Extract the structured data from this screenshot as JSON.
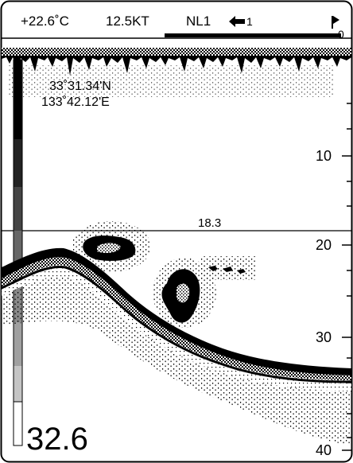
{
  "status_bar": {
    "water_temp": "+22.6˚C",
    "speed": "12.5KT",
    "noise_limiter": "NL1",
    "arrow_icon": "left-arrow-icon",
    "shift_value": "1",
    "flag_icon": "flag-icon",
    "flag_value": "0"
  },
  "position": {
    "latitude": "33˚31.34'N",
    "longitude": "133˚42.12'E"
  },
  "vrm": {
    "depth_label": "18.3"
  },
  "depth_scale": {
    "ticks": [
      "10",
      "20",
      "30",
      "40"
    ],
    "range_end": 40
  },
  "current_depth": "32.6",
  "colors": {
    "background": "#ffffff",
    "foreground": "#000000",
    "echo_strong": "#000000",
    "echo_medium": "#666666",
    "echo_weak": "#b0b0b0"
  }
}
